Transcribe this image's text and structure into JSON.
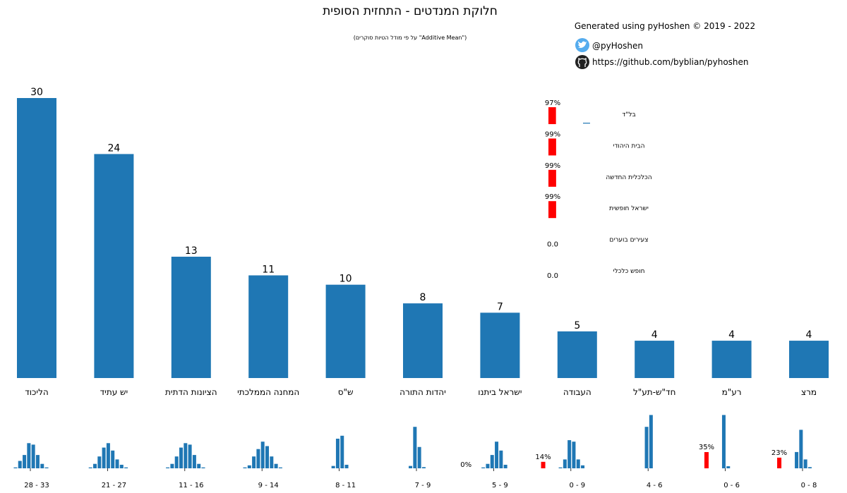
{
  "title": "חלוקת המנדטים - התחזית הסופית",
  "subtitle": "(\"Additive Mean\" על פי מודל הטיות סוקרים)",
  "credits": {
    "generated": "Generated using pyHoshen © 2019 - 2022",
    "twitter": "@pyHoshen",
    "github": "https://github.com/byblian/pyhoshen"
  },
  "colors": {
    "bar": "#1f77b4",
    "threshold": "#ff0000"
  },
  "chart_data": {
    "type": "bar",
    "title": "חלוקת המנדטים - התחזית הסופית",
    "ylim": [
      0,
      33
    ],
    "categories": [
      "הליכוד",
      "יש עתיד",
      "הציונות הדתית",
      "המחנה הממלכתי",
      "ש\"ס",
      "יהדות התורה",
      "ישראל ביתנו",
      "העבודה",
      "חד\"ש-תע\"ל",
      "רע\"מ",
      "מרצ"
    ],
    "values": [
      30,
      24,
      13,
      11,
      10,
      8,
      7,
      5,
      4,
      4,
      4
    ],
    "ranges": [
      "28 - 33",
      "21 - 27",
      "11 - 16",
      "9 - 14",
      "8 - 11",
      "7 - 9",
      "5 - 9",
      "0 - 9",
      "4 - 6",
      "0 - 6",
      "0 - 8"
    ],
    "distributions": [
      {
        "zero_pct": null,
        "bars": [
          0.03,
          0.25,
          0.45,
          0.85,
          0.8,
          0.45,
          0.15,
          0.03
        ]
      },
      {
        "zero_pct": null,
        "bars": [
          0.03,
          0.15,
          0.4,
          0.7,
          0.85,
          0.6,
          0.3,
          0.12,
          0.03
        ]
      },
      {
        "zero_pct": null,
        "bars": [
          0.03,
          0.15,
          0.4,
          0.7,
          0.85,
          0.8,
          0.45,
          0.15,
          0.03
        ]
      },
      {
        "zero_pct": null,
        "bars": [
          0.03,
          0.1,
          0.4,
          0.65,
          0.9,
          0.75,
          0.4,
          0.15,
          0.03
        ]
      },
      {
        "zero_pct": null,
        "bars": [
          0.08,
          1.0,
          1.1,
          0.12
        ]
      },
      {
        "zero_pct": null,
        "bars": [
          0.08,
          1.4,
          0.72,
          0.04
        ]
      },
      {
        "zero_pct": "0%",
        "zero_value": 0,
        "bars": [
          0.03,
          0.15,
          0.45,
          0.9,
          0.6,
          0.12
        ]
      },
      {
        "zero_pct": "14%",
        "zero_value": 14,
        "bars": [
          0.03,
          0.3,
          0.95,
          0.9,
          0.3,
          0.1
        ]
      },
      {
        "zero_pct": null,
        "bars": [
          1.4,
          1.8
        ]
      },
      {
        "zero_pct": "35%",
        "zero_value": 35,
        "bars": [
          1.8,
          0.07
        ]
      },
      {
        "zero_pct": "23%",
        "zero_value": 23,
        "bars": [
          0.55,
          1.3,
          0.3,
          0.04
        ]
      }
    ],
    "below_threshold": [
      {
        "name": "בל\"ד",
        "pct": "97%",
        "value": 97,
        "tiny_bar": true
      },
      {
        "name": "הבית היהודי",
        "pct": "99%",
        "value": 99
      },
      {
        "name": "הכלכלית החדשה",
        "pct": "99%",
        "value": 99
      },
      {
        "name": "ישראל חופשית",
        "pct": "99%",
        "value": 99
      },
      {
        "name": "צעירים בוערים",
        "pct": "0.0",
        "value": null
      },
      {
        "name": "חופש כלכלי",
        "pct": "0.0",
        "value": null
      }
    ]
  }
}
